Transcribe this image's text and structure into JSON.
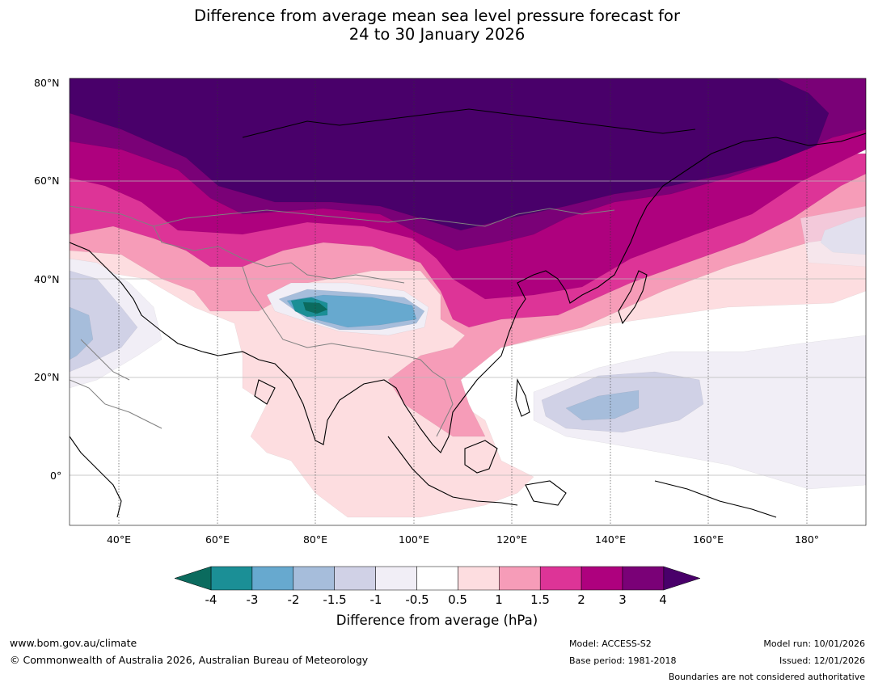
{
  "title": {
    "line1": "Difference from average mean sea level pressure forecast for",
    "line2": "24 to 30 January 2026"
  },
  "map": {
    "lat_labels": [
      "80°N",
      "60°N",
      "40°N",
      "20°N",
      "0°"
    ],
    "lon_labels": [
      "40°E",
      "60°E",
      "80°E",
      "100°E",
      "120°E",
      "140°E",
      "160°E",
      "180°"
    ]
  },
  "colorbar": {
    "title": "Difference from average (hPa)",
    "ticks": [
      "-4",
      "-3",
      "-2",
      "-1.5",
      "-1",
      "-0.5",
      "0.5",
      "1",
      "1.5",
      "2",
      "3",
      "4"
    ],
    "colors": {
      "below_min": "#0b6b5e",
      "n4_n3": "#1b8f96",
      "n3_n2": "#67a9cf",
      "n2_n15": "#a6bddb",
      "n15_n1": "#d0d1e6",
      "n1_n05": "#f1eef6",
      "n05_05": "#ffffff",
      "p05_1": "#fddde0",
      "p1_15": "#f69cb8",
      "p15_2": "#dd3497",
      "p2_3": "#ae017e",
      "p3_4": "#7a0177",
      "above_max": "#49006a"
    }
  },
  "footer": {
    "website": "www.bom.gov.au/climate",
    "copyright": "© Commonwealth of Australia 2026, Australian Bureau of Meteorology",
    "model": "Model: ACCESS-S2",
    "base_period": "Base period: 1981-2018",
    "model_run": "Model run: 10/01/2026",
    "issued": "Issued: 12/01/2026",
    "disclaimer": "Boundaries are not considered authoritative"
  }
}
